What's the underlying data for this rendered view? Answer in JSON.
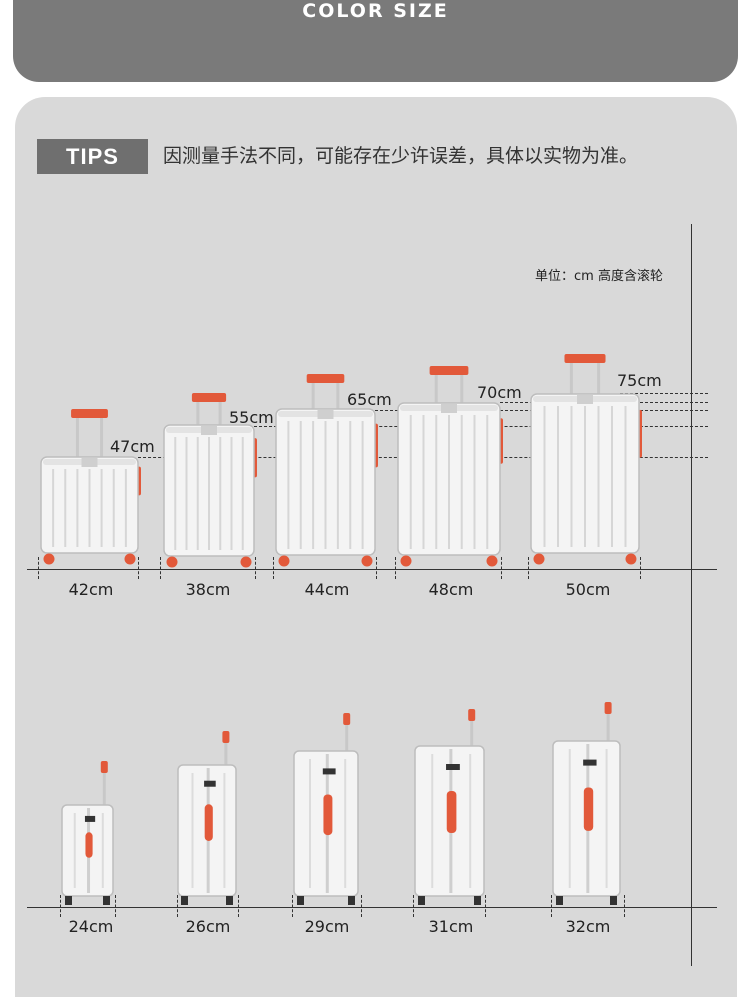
{
  "header": {
    "title": "COLOR SIZE"
  },
  "tips": {
    "badge": "TIPS",
    "text": "因测量手法不同，可能存在少许误差，具体以实物为准。"
  },
  "unit_note": "单位：cm 高度含滚轮",
  "front_row": [
    {
      "height": "47cm",
      "width": "42cm"
    },
    {
      "height": "55cm",
      "width": "38cm"
    },
    {
      "height": "65cm",
      "width": "44cm"
    },
    {
      "height": "70cm",
      "width": "48cm"
    },
    {
      "height": "75cm",
      "width": "50cm"
    }
  ],
  "side_row": [
    {
      "depth": "24cm"
    },
    {
      "depth": "26cm"
    },
    {
      "depth": "29cm"
    },
    {
      "depth": "31cm"
    },
    {
      "depth": "32cm"
    }
  ],
  "colors": {
    "handle": "#e2593a",
    "shell": "#f4f4f4",
    "panel": "#d9d9d9",
    "header": "#7a7a7a"
  }
}
